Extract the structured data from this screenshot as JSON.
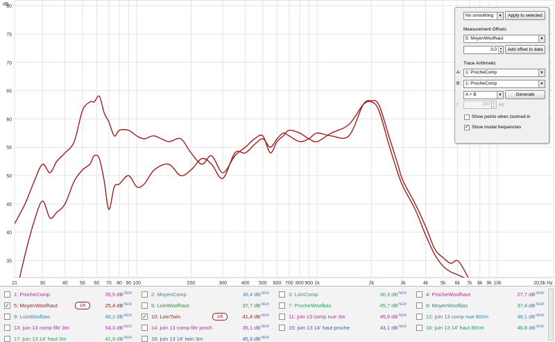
{
  "graph": {
    "y_unit": "dB",
    "x_unit": "Hz",
    "y_ticks": [
      "80",
      "75",
      "70",
      "65",
      "60",
      "55",
      "50",
      "45",
      "40",
      "35"
    ],
    "x_ticks": [
      "21",
      "30",
      "40",
      "50",
      "60",
      "70",
      "80",
      "90",
      "100",
      "200",
      "300",
      "400",
      "500",
      "600",
      "700",
      "800",
      "900",
      "1k",
      "2k",
      "3k",
      "4k",
      "5k",
      "6k",
      "7k",
      "8k",
      "9k",
      "10k",
      "20,5k"
    ],
    "trace_color": "#9e1c1c"
  },
  "chart_data": {
    "type": "line",
    "xlabel": "Hz",
    "ylabel": "dB",
    "xscale": "log",
    "xlim": [
      21,
      20500
    ],
    "ylim": [
      32,
      81
    ],
    "grid": true,
    "series": [
      {
        "name": "5: MoyenWoofhaut",
        "x": [
          21,
          24,
          27,
          30,
          33,
          36,
          40,
          45,
          50,
          55,
          58,
          62,
          66,
          70,
          75,
          80,
          90,
          100,
          110,
          125,
          150,
          175,
          200,
          230,
          260,
          300,
          350,
          400,
          450,
          500,
          550,
          600,
          650,
          700,
          800,
          900,
          1000,
          1200,
          1500,
          1800,
          2000,
          2200,
          2500,
          2800,
          3000,
          3500,
          4000,
          4500,
          5000,
          5500,
          6000,
          6500,
          7000
        ],
        "y": [
          28,
          36,
          42,
          45.5,
          42.5,
          43.5,
          45,
          49,
          51,
          52,
          53.5,
          53,
          49,
          44,
          48,
          48.5,
          50,
          48,
          48.5,
          51,
          52,
          50,
          51,
          53,
          52,
          49.5,
          54,
          54,
          55.5,
          56.5,
          55,
          56.5,
          57.5,
          57,
          56,
          56.5,
          57.5,
          57,
          57,
          62.5,
          63.2,
          62.5,
          57,
          52,
          49,
          45,
          41,
          37,
          35.5,
          34.5,
          35,
          33.5,
          31.5
        ]
      },
      {
        "name": "10: LoinTwin",
        "x": [
          21,
          24,
          27,
          30,
          33,
          36,
          40,
          45,
          50,
          55,
          58,
          62,
          66,
          70,
          75,
          80,
          90,
          100,
          110,
          125,
          150,
          175,
          200,
          230,
          260,
          300,
          350,
          400,
          450,
          500,
          550,
          600,
          650,
          700,
          800,
          900,
          1000,
          1200,
          1500,
          1800,
          2000,
          2200,
          2500,
          2800,
          3000,
          3500,
          4000,
          4500,
          5000,
          5500,
          6000,
          6500,
          7000
        ],
        "y": [
          41.5,
          45,
          49,
          52,
          50.5,
          52.5,
          54,
          56,
          61.5,
          63,
          63,
          64,
          61,
          59.5,
          57,
          58,
          58,
          57,
          56.5,
          57,
          56,
          56.5,
          54,
          52,
          53.5,
          50.5,
          53.5,
          55,
          56.5,
          57,
          54,
          56,
          57,
          58,
          57.5,
          56.5,
          56,
          57.5,
          59,
          62.5,
          63,
          61.5,
          55.5,
          50.5,
          48,
          44,
          39.5,
          36,
          34,
          33,
          32.5,
          32,
          31.5
        ]
      }
    ]
  },
  "control_panel": {
    "smoothing_value": "No smoothing",
    "apply_to_selected": "Apply to selected",
    "measurement_offsets_label": "Measurement Offsets",
    "offset_measurement": "5: MoyenWoofhaut",
    "offset_value": "3,0",
    "add_offset_button": "Add offset to data",
    "trace_arithmetic_label": "Trace Arithmetic",
    "a_label": "A:",
    "a_value": "1: ProcheComp",
    "b_label": "B:",
    "b_value": "1: ProcheComp",
    "operation": "A + B",
    "generate_button": "Generate",
    "f_label": "f:",
    "f_value": "200",
    "f_unit": "Hz",
    "show_points_label": "Show points when zoomed in",
    "show_modal_label": "Show modal frequencies"
  },
  "legend": {
    "new_tag": "NEW",
    "items": [
      {
        "label": "1: ProcheComp",
        "value": "35,5 dB",
        "checked": false,
        "color": "#b0309a",
        "smoothing": ""
      },
      {
        "label": "2: MoyenComp",
        "value": "36,4 dB",
        "checked": false,
        "color": "#3a80b5",
        "smoothing": ""
      },
      {
        "label": "3: LoinComp",
        "value": "30,3 dB",
        "checked": false,
        "color": "#28a060",
        "smoothing": ""
      },
      {
        "label": "4: ProcheWoofhaut",
        "value": "27,7 dB",
        "checked": false,
        "color": "#b0309a",
        "smoothing": ""
      },
      {
        "label": "5: MoyenWoofhaut",
        "value": "25,4 dB",
        "checked": true,
        "color": "#9e1c1c",
        "smoothing": "1/6"
      },
      {
        "label": "6: LoinWoofhaut",
        "value": "37,7 dB",
        "checked": false,
        "color": "#2f8a3a",
        "smoothing": ""
      },
      {
        "label": "7: ProcheWoofbas",
        "value": "45,7 dB",
        "checked": false,
        "color": "#28a060",
        "smoothing": ""
      },
      {
        "label": "8: MoyenWoofbas",
        "value": "37,4 dB",
        "checked": false,
        "color": "#2a8a80",
        "smoothing": ""
      },
      {
        "label": "9: LoinWoofbas",
        "value": "40,2 dB",
        "checked": false,
        "color": "#3a80b5",
        "smoothing": ""
      },
      {
        "label": "10: LoinTwin",
        "value": "41,4 dB",
        "checked": true,
        "color": "#9e1c1c",
        "smoothing": "1/6"
      },
      {
        "label": "11: juin 13 comp nue 3m",
        "value": "45,9 dB",
        "checked": false,
        "color": "#b0309a",
        "smoothing": ""
      },
      {
        "label": "12: juin 13 comp nue 80cm",
        "value": "46,1 dB",
        "checked": false,
        "color": "#3a80b5",
        "smoothing": ""
      },
      {
        "label": "13: juin 13 comp filtr 3m",
        "value": "54,3 dB",
        "checked": false,
        "color": "#b0309a",
        "smoothing": ""
      },
      {
        "label": "14: juin 13 comp filtr proch",
        "value": "35,1 dB",
        "checked": false,
        "color": "#b0309a",
        "smoothing": ""
      },
      {
        "label": "15: juin 13 14' haut proche",
        "value": "43,1 dB",
        "checked": false,
        "color": "#3a60a5",
        "smoothing": ""
      },
      {
        "label": "16: juin 13 14' haut 80cm",
        "value": "46,8 dB",
        "checked": false,
        "color": "#2a8a80",
        "smoothing": ""
      },
      {
        "label": "17: juin 13 14' haut 3m",
        "value": "41,9 dB",
        "checked": false,
        "color": "#28a060",
        "smoothing": ""
      },
      {
        "label": "18: juin 13 14' twin 3m",
        "value": "45,3 dB",
        "checked": false,
        "color": "#3a60a5",
        "smoothing": ""
      }
    ]
  }
}
